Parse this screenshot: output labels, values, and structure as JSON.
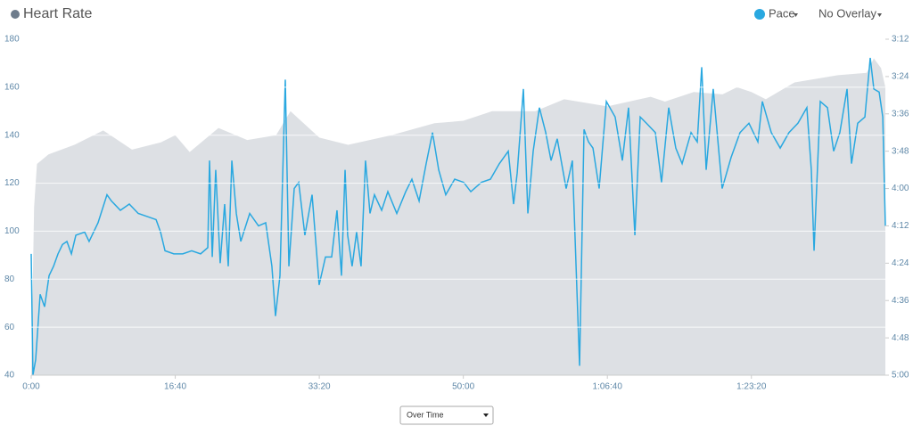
{
  "chart_data": {
    "type": "area-line",
    "title": "Heart Rate",
    "overlay": "No Overlay",
    "view": "Over Time",
    "xlim": [
      0,
      5930
    ],
    "xticks": [
      {
        "value": 0,
        "label": "0:00"
      },
      {
        "value": 1000,
        "label": "16:40"
      },
      {
        "value": 2000,
        "label": "33:20"
      },
      {
        "value": 3000,
        "label": "50:00"
      },
      {
        "value": 4000,
        "label": "1:06:40"
      },
      {
        "value": 5000,
        "label": "1:23:20"
      }
    ],
    "ylim": [
      40,
      180
    ],
    "yticks": [
      40,
      60,
      80,
      100,
      120,
      140,
      160,
      180
    ],
    "y2lim": [
      300,
      192
    ],
    "y2ticks": [
      {
        "value": 192,
        "label": "3:12"
      },
      {
        "value": 204,
        "label": "3:24"
      },
      {
        "value": 216,
        "label": "3:36"
      },
      {
        "value": 228,
        "label": "3:48"
      },
      {
        "value": 240,
        "label": "4:00"
      },
      {
        "value": 252,
        "label": "4:12"
      },
      {
        "value": 264,
        "label": "4:24"
      },
      {
        "value": 276,
        "label": "4:36"
      },
      {
        "value": 288,
        "label": "4:48"
      },
      {
        "value": 300,
        "label": "5:00"
      }
    ],
    "grid": true,
    "series": [
      {
        "name": "Heart Rate",
        "color": "#dde0e4",
        "x": [
          0,
          20,
          40,
          120,
          300,
          500,
          600,
          700,
          900,
          1000,
          1100,
          1300,
          1500,
          1700,
          1800,
          2000,
          2200,
          2500,
          2800,
          3000,
          3200,
          3500,
          3700,
          4000,
          4300,
          4400,
          4600,
          4800,
          4900,
          5000,
          5100,
          5300,
          5600,
          5800,
          5850,
          5900,
          5930
        ],
        "values": [
          40,
          110,
          128,
          132,
          136,
          142,
          138,
          134,
          137,
          140,
          133,
          143,
          138,
          140,
          150,
          139,
          136,
          140,
          145,
          146,
          150,
          150,
          155,
          152,
          156,
          154,
          158,
          157,
          160,
          158,
          155,
          162,
          165,
          166,
          172,
          168,
          160
        ]
      },
      {
        "name": "Pace",
        "color": "#29a8e0",
        "axis": "y2",
        "x": [
          0,
          12,
          31,
          62,
          93,
          124,
          155,
          186,
          217,
          248,
          279,
          310,
          371,
          402,
          464,
          526,
          557,
          619,
          681,
          743,
          805,
          867,
          898,
          929,
          990,
          1052,
          1114,
          1176,
          1226,
          1238,
          1257,
          1281,
          1312,
          1343,
          1368,
          1393,
          1424,
          1455,
          1517,
          1578,
          1628,
          1671,
          1696,
          1727,
          1764,
          1789,
          1826,
          1857,
          1900,
          1950,
          1999,
          2043,
          2086,
          2123,
          2154,
          2179,
          2197,
          2228,
          2259,
          2290,
          2321,
          2352,
          2383,
          2433,
          2476,
          2538,
          2600,
          2643,
          2693,
          2742,
          2786,
          2829,
          2878,
          2940,
          3002,
          3052,
          3126,
          3188,
          3250,
          3312,
          3349,
          3374,
          3417,
          3448,
          3485,
          3528,
          3572,
          3609,
          3652,
          3714,
          3757,
          3807,
          3838,
          3869,
          3900,
          3943,
          3993,
          4054,
          4104,
          4147,
          4191,
          4228,
          4271,
          4333,
          4376,
          4426,
          4475,
          4519,
          4581,
          4624,
          4655,
          4686,
          4735,
          4797,
          4859,
          4921,
          4983,
          5045,
          5076,
          5138,
          5200,
          5261,
          5323,
          5385,
          5416,
          5435,
          5478,
          5528,
          5571,
          5614,
          5664,
          5695,
          5738,
          5788,
          5825,
          5850,
          5887,
          5912,
          5930
        ],
        "values": [
          261,
          300,
          295,
          274,
          278,
          268,
          265,
          261,
          258,
          257,
          261,
          255,
          254,
          257,
          251,
          242,
          244,
          247,
          245,
          248,
          249,
          250,
          254,
          260,
          261,
          261,
          260,
          261,
          259,
          231,
          262,
          234,
          264,
          245,
          265,
          231,
          248,
          257,
          248,
          252,
          251,
          265,
          281,
          268,
          205,
          265,
          240,
          238,
          255,
          242,
          271,
          262,
          262,
          247,
          268,
          234,
          255,
          265,
          254,
          265,
          231,
          248,
          242,
          247,
          241,
          248,
          241,
          237,
          244,
          232,
          222,
          234,
          242,
          237,
          238,
          241,
          238,
          237,
          232,
          228,
          245,
          235,
          208,
          248,
          228,
          214,
          222,
          231,
          224,
          240,
          231,
          297,
          221,
          225,
          227,
          240,
          212,
          217,
          231,
          214,
          255,
          217,
          219,
          222,
          238,
          214,
          227,
          232,
          222,
          225,
          201,
          234,
          208,
          240,
          230,
          222,
          219,
          225,
          212,
          222,
          227,
          222,
          219,
          214,
          234,
          260,
          212,
          214,
          228,
          222,
          208,
          232,
          219,
          217,
          198,
          208,
          209,
          217,
          252
        ]
      }
    ]
  }
}
